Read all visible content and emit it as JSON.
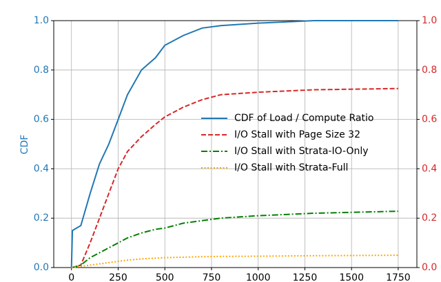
{
  "chart_data": {
    "type": "line",
    "ylabel": "CDF",
    "x": [
      0,
      5,
      50,
      100,
      150,
      200,
      250,
      300,
      375,
      450,
      500,
      600,
      700,
      800,
      1000,
      1300,
      1750
    ],
    "series": [
      {
        "name": "CDF of Load / Compute Ratio",
        "color": "#1f77b4",
        "style": "solid",
        "axis": "y",
        "values": [
          0,
          0.15,
          0.17,
          0.3,
          0.42,
          0.5,
          0.6,
          0.7,
          0.8,
          0.85,
          0.9,
          0.94,
          0.97,
          0.98,
          0.99,
          1.0,
          1.0
        ]
      },
      {
        "name": "I/O Stall with Page Size 32",
        "color": "#d62728",
        "style": "dashed",
        "axis": "y2",
        "values": [
          0,
          0,
          0.01,
          0.1,
          0.2,
          0.3,
          0.4,
          0.47,
          0.53,
          0.58,
          0.61,
          0.65,
          0.68,
          0.7,
          0.71,
          0.72,
          0.725
        ]
      },
      {
        "name": "I/O Stall with Strata-IO-Only",
        "color": "#008000",
        "style": "dashdot",
        "axis": "y2",
        "values": [
          0,
          0,
          0.01,
          0.04,
          0.06,
          0.08,
          0.1,
          0.12,
          0.14,
          0.155,
          0.16,
          0.18,
          0.19,
          0.2,
          0.21,
          0.22,
          0.228
        ]
      },
      {
        "name": "I/O Stall with Strata-Full",
        "color": "#ffa500",
        "style": "dotted",
        "axis": "y2",
        "values": [
          0,
          0,
          0.005,
          0.01,
          0.015,
          0.02,
          0.025,
          0.03,
          0.035,
          0.038,
          0.04,
          0.042,
          0.044,
          0.045,
          0.046,
          0.048,
          0.05
        ]
      }
    ],
    "xlim": [
      -95,
      1850
    ],
    "xticks": [
      0,
      250,
      500,
      750,
      1000,
      1250,
      1500,
      1750
    ],
    "ylim": [
      0,
      1
    ],
    "yticks": [
      {
        "value": 0,
        "label": "0.0"
      },
      0.2,
      0.4,
      0.6,
      0.8,
      {
        "value": 1,
        "label": "1.0"
      }
    ],
    "y2lim": [
      0,
      1
    ],
    "y2ticks": [
      {
        "value": 0,
        "label": "0.0"
      },
      0.2,
      0.4,
      0.6,
      0.8,
      {
        "value": 1,
        "label": "1.0"
      }
    ],
    "ycolor": "#1f77b4",
    "y2color": "#d62728",
    "grid": true
  }
}
